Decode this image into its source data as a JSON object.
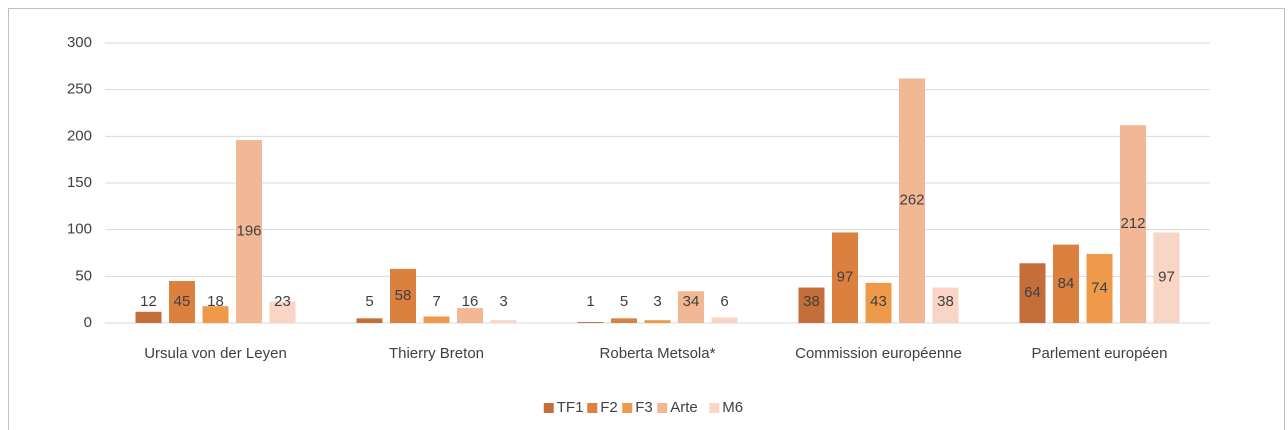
{
  "chart_data": {
    "type": "bar",
    "categories": [
      "Ursula von der Leyen",
      "Thierry Breton",
      "Roberta Metsola*",
      "Commission européenne",
      "Parlement européen"
    ],
    "series": [
      {
        "name": "TF1",
        "color": "#c46e3a",
        "values": [
          12,
          5,
          1,
          38,
          64
        ]
      },
      {
        "name": "F2",
        "color": "#dc8040",
        "values": [
          45,
          58,
          5,
          97,
          84
        ]
      },
      {
        "name": "F3",
        "color": "#ef9a4a",
        "values": [
          18,
          7,
          3,
          43,
          74
        ]
      },
      {
        "name": "Arte",
        "color": "#f2b896",
        "values": [
          196,
          16,
          34,
          262,
          212
        ]
      },
      {
        "name": "M6",
        "color": "#f8d5c5",
        "values": [
          23,
          3,
          6,
          38,
          97
        ]
      }
    ],
    "ylim": [
      0,
      300
    ],
    "yticks": [
      0,
      50,
      100,
      150,
      200,
      250,
      300
    ],
    "grid": true,
    "legend": "bottom"
  }
}
